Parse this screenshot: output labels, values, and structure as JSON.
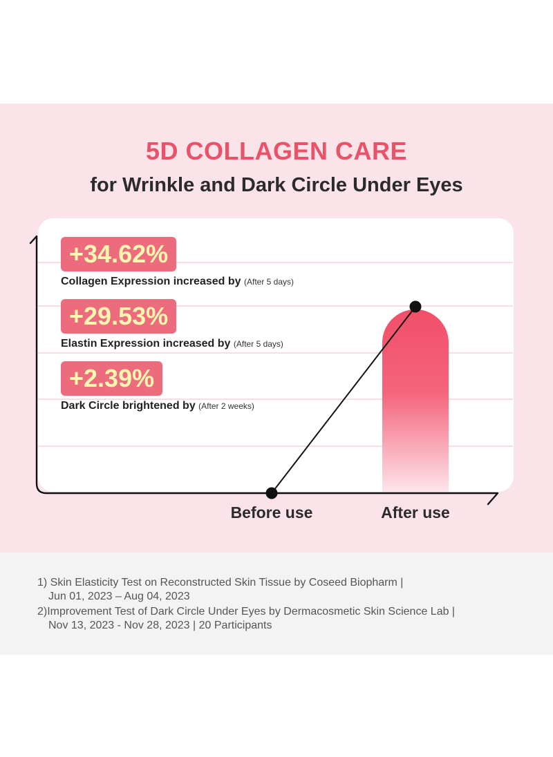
{
  "header": {
    "title": "5D COLLAGEN CARE",
    "subtitle": "for Wrinkle and Dark Circle Under Eyes"
  },
  "stats": [
    {
      "value": "+34.62%",
      "label": "Collagen Expression increased by",
      "note": "(After 5 days)"
    },
    {
      "value": "+29.53%",
      "label": "Elastin Expression increased by",
      "note": "(After 5 days)"
    },
    {
      "value": "+2.39%",
      "label": "Dark Circle brightened by",
      "note": "(After 2 weeks)"
    }
  ],
  "chart_data": {
    "type": "bar",
    "categories": [
      "Before use",
      "After use"
    ],
    "values": [
      0,
      1
    ],
    "grid": true,
    "colors": {
      "bar_top": "#f24f69",
      "bar_bottom": "#fde6ec",
      "line": "#111111",
      "grid": "#f4c9d2"
    }
  },
  "footnotes": [
    {
      "line1": "1) Skin Elasticity Test on Reconstructed Skin Tissue by Coseed Biopharm |",
      "line2": "Jun 01, 2023 – Aug 04, 2023"
    },
    {
      "line1": "2)Improvement Test of Dark Circle Under Eyes by Dermacosmetic Skin Science Lab |",
      "line2": "Nov 13, 2023 - Nov 28, 2023 | 20 Participants"
    }
  ],
  "colors": {
    "background_pink": "#fbe3ea",
    "title_pink": "#e8536a",
    "badge_pink": "#ec6b7d",
    "badge_text": "#fff6b0"
  }
}
